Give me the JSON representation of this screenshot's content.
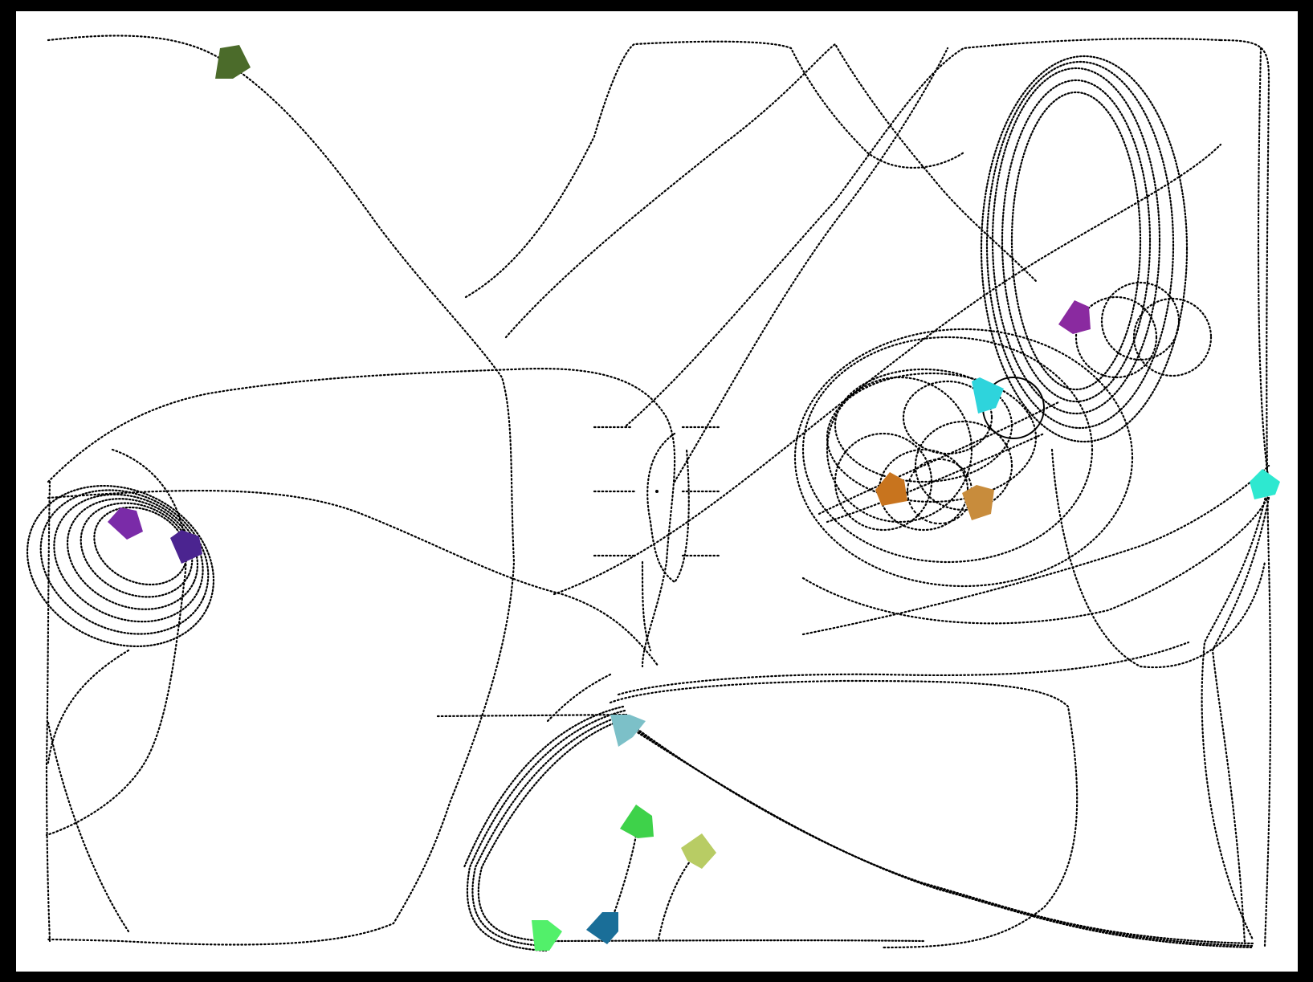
{
  "scene": {
    "background": "#000000",
    "canvas_color": "#ffffff",
    "trail_color": "#000000"
  },
  "agents": [
    {
      "id": "agent-olive-top-left",
      "color": "#4b6b2a"
    },
    {
      "id": "agent-purple-left-1",
      "color": "#7a2ba8"
    },
    {
      "id": "agent-indigo-left-2",
      "color": "#4b2490"
    },
    {
      "id": "agent-purple-right",
      "color": "#8a2aa0"
    },
    {
      "id": "agent-cyan-center-right",
      "color": "#2ed4dc"
    },
    {
      "id": "agent-orange-1",
      "color": "#c8741e"
    },
    {
      "id": "agent-tan-orange-2",
      "color": "#c88c3c"
    },
    {
      "id": "agent-aqua-right-edge",
      "color": "#2ee8d0"
    },
    {
      "id": "agent-teal-bottom-center",
      "color": "#7cc0c8"
    },
    {
      "id": "agent-green-1",
      "color": "#3ed24a"
    },
    {
      "id": "agent-lime-olive",
      "color": "#b8cc64"
    },
    {
      "id": "agent-blue-bottom",
      "color": "#1a6e98"
    },
    {
      "id": "agent-light-green-bottom",
      "color": "#52f06a"
    }
  ]
}
